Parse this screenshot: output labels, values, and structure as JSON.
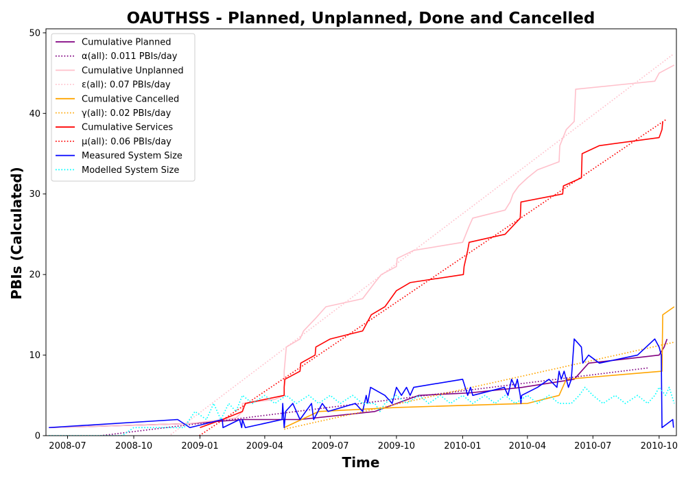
{
  "chart_data": {
    "type": "line",
    "title": "OAUTHSS - Planned, Unplanned, Done  and Cancelled",
    "xlabel": "Time",
    "ylabel": "PBIs (Calculated)",
    "xlim": [
      "2008-06-01",
      "2010-10-25"
    ],
    "ylim": [
      0,
      50.5
    ],
    "x_ticks": [
      "2008-07-01",
      "2008-10-01",
      "2009-01-01",
      "2009-04-01",
      "2009-07-01",
      "2009-10-01",
      "2010-01-01",
      "2010-04-01",
      "2010-07-01",
      "2010-10-01"
    ],
    "x_tick_labels": [
      "2008-07",
      "2008-10",
      "2009-01",
      "2009-04",
      "2009-07",
      "2009-10",
      "2010-01",
      "2010-04",
      "2010-07",
      "2010-10"
    ],
    "y_ticks": [
      0,
      10,
      20,
      30,
      40,
      50
    ],
    "y_tick_labels": [
      "0",
      "10",
      "20",
      "30",
      "40",
      "50"
    ],
    "grid": false,
    "legend_position": "top-left",
    "series": [
      {
        "name": "Cumulative Planned",
        "color": "#800080",
        "style": "solid",
        "points": [
          [
            "2008-06-05",
            1
          ],
          [
            "2008-12-18",
            1.5
          ],
          [
            "2009-03-01",
            2
          ],
          [
            "2009-05-20",
            2
          ],
          [
            "2009-09-01",
            3
          ],
          [
            "2009-11-01",
            5
          ],
          [
            "2010-01-10",
            5.3
          ],
          [
            "2010-03-25",
            6
          ],
          [
            "2010-06-05",
            7
          ],
          [
            "2010-06-15",
            8
          ],
          [
            "2010-06-25",
            9
          ],
          [
            "2010-10-01",
            10
          ],
          [
            "2010-10-08",
            11
          ],
          [
            "2010-10-12",
            12
          ]
        ]
      },
      {
        "name": "α(all): 0.011 PBIs/day",
        "color": "#800080",
        "style": "dotted",
        "points": [
          [
            "2008-06-05",
            -0.8
          ],
          [
            "2010-09-15",
            8.4
          ]
        ]
      },
      {
        "name": "Cumulative Unplanned",
        "color": "#ffc0cb",
        "style": "solid",
        "points": [
          [
            "2008-06-05",
            1
          ],
          [
            "2008-12-18",
            1.5
          ],
          [
            "2009-01-15",
            1.8
          ],
          [
            "2009-02-20",
            2.2
          ],
          [
            "2009-03-01",
            3
          ],
          [
            "2009-03-01",
            4
          ],
          [
            "2009-04-15",
            4.5
          ],
          [
            "2009-04-28",
            5
          ],
          [
            "2009-04-28",
            8
          ],
          [
            "2009-05-01",
            11
          ],
          [
            "2009-05-20",
            12
          ],
          [
            "2009-05-25",
            13
          ],
          [
            "2009-06-10",
            14.5
          ],
          [
            "2009-06-25",
            16
          ],
          [
            "2009-08-15",
            17
          ],
          [
            "2009-09-01",
            19
          ],
          [
            "2009-09-10",
            20
          ],
          [
            "2009-10-01",
            21
          ],
          [
            "2009-10-02",
            22
          ],
          [
            "2009-10-25",
            23
          ],
          [
            "2010-01-01",
            24
          ],
          [
            "2010-01-10",
            26
          ],
          [
            "2010-01-15",
            27
          ],
          [
            "2010-03-01",
            28
          ],
          [
            "2010-03-08",
            29
          ],
          [
            "2010-03-12",
            30
          ],
          [
            "2010-03-20",
            31
          ],
          [
            "2010-04-01",
            32
          ],
          [
            "2010-04-15",
            33
          ],
          [
            "2010-05-15",
            34
          ],
          [
            "2010-05-16",
            36
          ],
          [
            "2010-05-25",
            38
          ],
          [
            "2010-06-05",
            39
          ],
          [
            "2010-06-06",
            41
          ],
          [
            "2010-06-07",
            43
          ],
          [
            "2010-09-25",
            44
          ],
          [
            "2010-10-01",
            45
          ],
          [
            "2010-10-22",
            46
          ]
        ]
      },
      {
        "name": "ε(all): 0.07 PBIs/day",
        "color": "#ffc0cb",
        "style": "dotted",
        "points": [
          [
            "2008-11-15",
            -0.3
          ],
          [
            "2010-10-20",
            47.3
          ]
        ]
      },
      {
        "name": "Cumulative Cancelled",
        "color": "#ffa500",
        "style": "solid",
        "points": [
          [
            "2009-04-28",
            1
          ],
          [
            "2009-06-15",
            3
          ],
          [
            "2009-10-01",
            3.5
          ],
          [
            "2010-04-01",
            4
          ],
          [
            "2010-05-15",
            5
          ],
          [
            "2010-05-25",
            7
          ],
          [
            "2010-10-05",
            8
          ],
          [
            "2010-10-06",
            15
          ],
          [
            "2010-10-22",
            16
          ]
        ]
      },
      {
        "name": "γ(all): 0.02 PBIs/day",
        "color": "#ffa500",
        "style": "dotted",
        "points": [
          [
            "2009-04-28",
            0.8
          ],
          [
            "2010-10-22",
            11.6
          ]
        ]
      },
      {
        "name": "Cumulative Services",
        "color": "#ff0000",
        "style": "solid",
        "points": [
          [
            "2009-01-01",
            1
          ],
          [
            "2009-02-01",
            2
          ],
          [
            "2009-03-01",
            3
          ],
          [
            "2009-03-05",
            4
          ],
          [
            "2009-04-28",
            5
          ],
          [
            "2009-04-28",
            6
          ],
          [
            "2009-04-29",
            7
          ],
          [
            "2009-05-20",
            8
          ],
          [
            "2009-05-21",
            9
          ],
          [
            "2009-06-10",
            10
          ],
          [
            "2009-06-11",
            11
          ],
          [
            "2009-07-01",
            12
          ],
          [
            "2009-08-15",
            13
          ],
          [
            "2009-08-27",
            15
          ],
          [
            "2009-09-15",
            16
          ],
          [
            "2009-10-01",
            18
          ],
          [
            "2009-10-20",
            19
          ],
          [
            "2010-01-02",
            20
          ],
          [
            "2010-01-03",
            21
          ],
          [
            "2010-01-08",
            23
          ],
          [
            "2010-01-10",
            24
          ],
          [
            "2010-03-01",
            25
          ],
          [
            "2010-03-22",
            27
          ],
          [
            "2010-03-23",
            29
          ],
          [
            "2010-05-20",
            30
          ],
          [
            "2010-05-21",
            31
          ],
          [
            "2010-06-15",
            32
          ],
          [
            "2010-06-16",
            35
          ],
          [
            "2010-07-10",
            36
          ],
          [
            "2010-10-01",
            37
          ],
          [
            "2010-10-05",
            38
          ],
          [
            "2010-10-06",
            39
          ]
        ]
      },
      {
        "name": "μ(all): 0.06 PBIs/day",
        "color": "#ff0000",
        "style": "dotted",
        "points": [
          [
            "2008-12-28",
            -0.2
          ],
          [
            "2010-10-10",
            39.2
          ]
        ]
      },
      {
        "name": "Measured System Size",
        "color": "#0000ff",
        "style": "solid",
        "points": [
          [
            "2008-06-05",
            1
          ],
          [
            "2008-12-01",
            2
          ],
          [
            "2008-12-18",
            1
          ],
          [
            "2009-02-01",
            2
          ],
          [
            "2009-02-02",
            1
          ],
          [
            "2009-02-25",
            2
          ],
          [
            "2009-02-28",
            1
          ],
          [
            "2009-03-01",
            2
          ],
          [
            "2009-03-05",
            1
          ],
          [
            "2009-04-25",
            2
          ],
          [
            "2009-04-26",
            4
          ],
          [
            "2009-04-28",
            1
          ],
          [
            "2009-04-30",
            3
          ],
          [
            "2009-05-10",
            4
          ],
          [
            "2009-05-20",
            2
          ],
          [
            "2009-06-05",
            4
          ],
          [
            "2009-06-08",
            2
          ],
          [
            "2009-06-20",
            4
          ],
          [
            "2009-06-28",
            3
          ],
          [
            "2009-08-05",
            4
          ],
          [
            "2009-08-15",
            3
          ],
          [
            "2009-08-20",
            5
          ],
          [
            "2009-08-22",
            4
          ],
          [
            "2009-08-26",
            6
          ],
          [
            "2009-09-15",
            5
          ],
          [
            "2009-09-25",
            4
          ],
          [
            "2009-10-01",
            6
          ],
          [
            "2009-10-08",
            5
          ],
          [
            "2009-10-15",
            6
          ],
          [
            "2009-10-20",
            5
          ],
          [
            "2009-10-25",
            6
          ],
          [
            "2010-01-01",
            7
          ],
          [
            "2010-01-08",
            5
          ],
          [
            "2010-01-12",
            6
          ],
          [
            "2010-01-15",
            5
          ],
          [
            "2010-02-28",
            6
          ],
          [
            "2010-03-05",
            5
          ],
          [
            "2010-03-10",
            7
          ],
          [
            "2010-03-15",
            6
          ],
          [
            "2010-03-18",
            7
          ],
          [
            "2010-03-22",
            5
          ],
          [
            "2010-03-23",
            4
          ],
          [
            "2010-03-24",
            5
          ],
          [
            "2010-04-15",
            6
          ],
          [
            "2010-05-01",
            7
          ],
          [
            "2010-05-12",
            6
          ],
          [
            "2010-05-15",
            8
          ],
          [
            "2010-05-18",
            7
          ],
          [
            "2010-05-22",
            8
          ],
          [
            "2010-05-28",
            6
          ],
          [
            "2010-06-01",
            7
          ],
          [
            "2010-06-05",
            12
          ],
          [
            "2010-06-15",
            11
          ],
          [
            "2010-06-17",
            9
          ],
          [
            "2010-06-25",
            10
          ],
          [
            "2010-07-10",
            9
          ],
          [
            "2010-09-01",
            10
          ],
          [
            "2010-09-25",
            12
          ],
          [
            "2010-10-01",
            11
          ],
          [
            "2010-10-04",
            10
          ],
          [
            "2010-10-05",
            1
          ],
          [
            "2010-10-20",
            2
          ],
          [
            "2010-10-21",
            1
          ]
        ]
      },
      {
        "name": "Modelled System Size",
        "color": "#00ffff",
        "style": "dotted",
        "points": [
          [
            "2008-06-05",
            0
          ],
          [
            "2008-09-15",
            0
          ],
          [
            "2008-10-01",
            1
          ],
          [
            "2008-12-10",
            1
          ],
          [
            "2008-12-25",
            3
          ],
          [
            "2009-01-10",
            2
          ],
          [
            "2009-01-20",
            4
          ],
          [
            "2009-01-30",
            2
          ],
          [
            "2009-02-10",
            4
          ],
          [
            "2009-02-20",
            3
          ],
          [
            "2009-03-01",
            5
          ],
          [
            "2009-03-15",
            4
          ],
          [
            "2009-04-01",
            5
          ],
          [
            "2009-04-15",
            4
          ],
          [
            "2009-05-01",
            5
          ],
          [
            "2009-05-15",
            4
          ],
          [
            "2009-06-01",
            5
          ],
          [
            "2009-06-15",
            4
          ],
          [
            "2009-07-01",
            5
          ],
          [
            "2009-07-15",
            4
          ],
          [
            "2009-08-01",
            5
          ],
          [
            "2009-08-15",
            4
          ],
          [
            "2009-09-01",
            4
          ],
          [
            "2009-09-08",
            3
          ],
          [
            "2009-09-15",
            4
          ],
          [
            "2009-10-01",
            5
          ],
          [
            "2009-10-15",
            4
          ],
          [
            "2009-11-01",
            5
          ],
          [
            "2009-11-15",
            4
          ],
          [
            "2009-12-01",
            5
          ],
          [
            "2009-12-15",
            4
          ],
          [
            "2010-01-01",
            5
          ],
          [
            "2010-01-15",
            4
          ],
          [
            "2010-02-01",
            5
          ],
          [
            "2010-02-15",
            4
          ],
          [
            "2010-03-01",
            5
          ],
          [
            "2010-03-15",
            4
          ],
          [
            "2010-04-01",
            5
          ],
          [
            "2010-04-15",
            4
          ],
          [
            "2010-05-01",
            5
          ],
          [
            "2010-05-15",
            4
          ],
          [
            "2010-06-01",
            4
          ],
          [
            "2010-06-12",
            5
          ],
          [
            "2010-06-20",
            6
          ],
          [
            "2010-07-01",
            5
          ],
          [
            "2010-07-15",
            4
          ],
          [
            "2010-08-01",
            5
          ],
          [
            "2010-08-15",
            4
          ],
          [
            "2010-09-01",
            5
          ],
          [
            "2010-09-15",
            4
          ],
          [
            "2010-09-25",
            5
          ],
          [
            "2010-10-01",
            6
          ],
          [
            "2010-10-10",
            5
          ],
          [
            "2010-10-15",
            6
          ],
          [
            "2010-10-22",
            4
          ]
        ]
      }
    ]
  }
}
